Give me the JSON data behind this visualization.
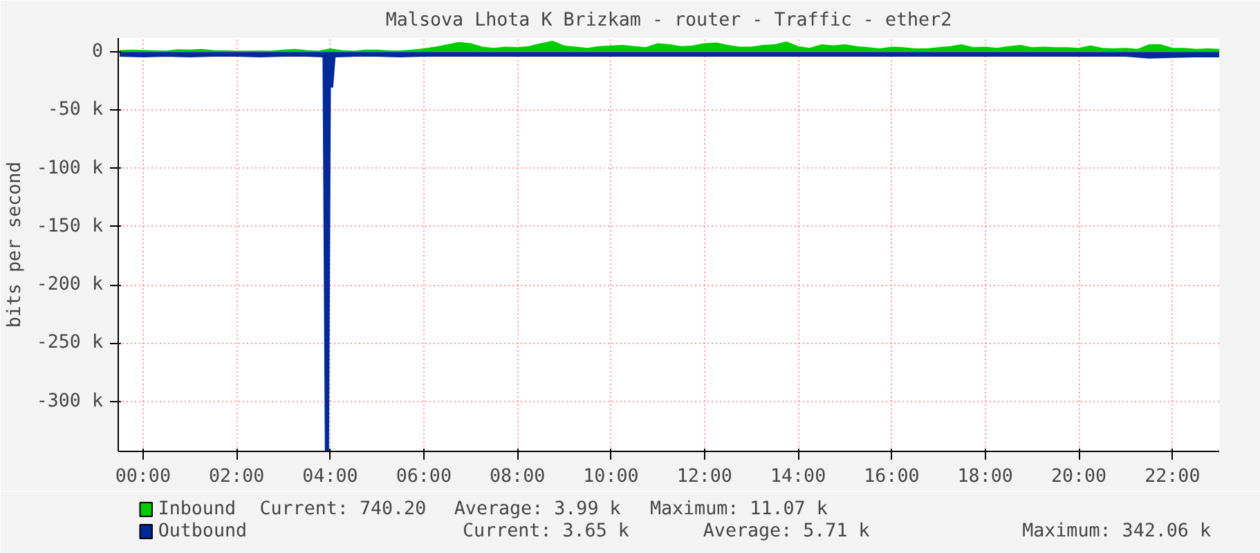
{
  "chart_data": {
    "type": "area",
    "title": "Malsova Lhota K Brizkam - router - Traffic - ether2",
    "ylabel": "bits per second",
    "x": [
      -0.5,
      -0.25,
      0,
      0.25,
      0.5,
      0.75,
      1,
      1.25,
      1.5,
      1.75,
      2,
      2.25,
      2.5,
      2.75,
      3,
      3.25,
      3.5,
      3.75,
      4,
      4.25,
      4.5,
      4.75,
      5,
      5.25,
      5.5,
      5.75,
      6,
      6.25,
      6.5,
      6.75,
      7,
      7.25,
      7.5,
      7.75,
      8,
      8.25,
      8.5,
      8.75,
      9,
      9.25,
      9.5,
      9.75,
      10,
      10.25,
      10.5,
      10.75,
      11,
      11.25,
      11.5,
      11.75,
      12,
      12.25,
      12.5,
      12.75,
      13,
      13.25,
      13.5,
      13.75,
      14,
      14.25,
      14.5,
      14.75,
      15,
      15.25,
      15.5,
      15.75,
      16,
      16.25,
      16.5,
      16.75,
      17,
      17.25,
      17.5,
      17.75,
      18,
      18.25,
      18.5,
      18.75,
      19,
      19.25,
      19.5,
      19.75,
      20,
      20.25,
      20.5,
      20.75,
      21,
      21.25,
      21.5,
      21.75,
      22,
      22.25,
      22.5,
      22.75,
      23
    ],
    "series": [
      {
        "name": "Inbound",
        "color": "#00cc00",
        "values": [
          1000,
          1500,
          1200,
          800,
          600,
          1800,
          1500,
          2000,
          1000,
          800,
          500,
          500,
          700,
          600,
          1500,
          2000,
          1000,
          500,
          2500,
          1000,
          500,
          1500,
          1500,
          800,
          700,
          1500,
          2500,
          4000,
          6000,
          8000,
          7000,
          4000,
          3000,
          4000,
          3500,
          4500,
          7000,
          9000,
          5000,
          4000,
          3000,
          4500,
          5000,
          5500,
          4500,
          3500,
          7000,
          6000,
          4500,
          5000,
          7000,
          7500,
          5500,
          4000,
          4000,
          5500,
          6000,
          8500,
          4500,
          3000,
          6000,
          5000,
          6000,
          4500,
          3500,
          2500,
          4000,
          3500,
          2500,
          2500,
          3500,
          4500,
          6000,
          3500,
          4000,
          3000,
          4500,
          5500,
          3500,
          4000,
          3500,
          3500,
          3000,
          5000,
          3000,
          2500,
          3000,
          2000,
          6000,
          6000,
          3000,
          3000,
          2000,
          2500,
          2000
        ]
      },
      {
        "name": "Outbound",
        "color": "#002a97",
        "x": [
          -0.5,
          0,
          0.5,
          1,
          1.5,
          2,
          2.5,
          3,
          3.5,
          3.85,
          3.9,
          3.96,
          4.0,
          4.05,
          4.1,
          4.5,
          5,
          5.5,
          6,
          8,
          10,
          12,
          14,
          16,
          18,
          20,
          21,
          21.5,
          22,
          22.5,
          23
        ],
        "values": [
          -3500,
          -4000,
          -3500,
          -4000,
          -3500,
          -3500,
          -4000,
          -3500,
          -3500,
          -4000,
          -342060,
          -342060,
          -30000,
          -30000,
          -4000,
          -3500,
          -3500,
          -4000,
          -3500,
          -3500,
          -3500,
          -3500,
          -3500,
          -3500,
          -3500,
          -3500,
          -3500,
          -5000,
          -4500,
          -4000,
          -4000
        ]
      }
    ],
    "xlim": [
      -0.53,
      23.0
    ],
    "xticks": [
      {
        "value": 0,
        "label": "00:00"
      },
      {
        "value": 2,
        "label": "02:00"
      },
      {
        "value": 4,
        "label": "04:00"
      },
      {
        "value": 6,
        "label": "06:00"
      },
      {
        "value": 8,
        "label": "08:00"
      },
      {
        "value": 10,
        "label": "10:00"
      },
      {
        "value": 12,
        "label": "12:00"
      },
      {
        "value": 14,
        "label": "14:00"
      },
      {
        "value": 16,
        "label": "16:00"
      },
      {
        "value": 18,
        "label": "18:00"
      },
      {
        "value": 20,
        "label": "20:00"
      },
      {
        "value": 22,
        "label": "22:00"
      }
    ],
    "ylim": [
      -343000,
      12000
    ],
    "yticks": [
      0,
      {
        "value": -50000,
        "label": "-50 k"
      },
      {
        "value": -100000,
        "label": "-100 k"
      },
      {
        "value": -150000,
        "label": "-150 k"
      },
      {
        "value": -200000,
        "label": "-200 k"
      },
      {
        "value": -250000,
        "label": "-250 k"
      },
      {
        "value": -300000,
        "label": "-300 k"
      }
    ],
    "grid": true,
    "legend": "bottom left",
    "annotations": [
      "Current:  740.20",
      "Average:    3.99 k",
      "Maximum:   11.07 k",
      "Current:    3.65 k",
      "Average:    5.71 k",
      "Maximum:  342.06 k"
    ]
  }
}
